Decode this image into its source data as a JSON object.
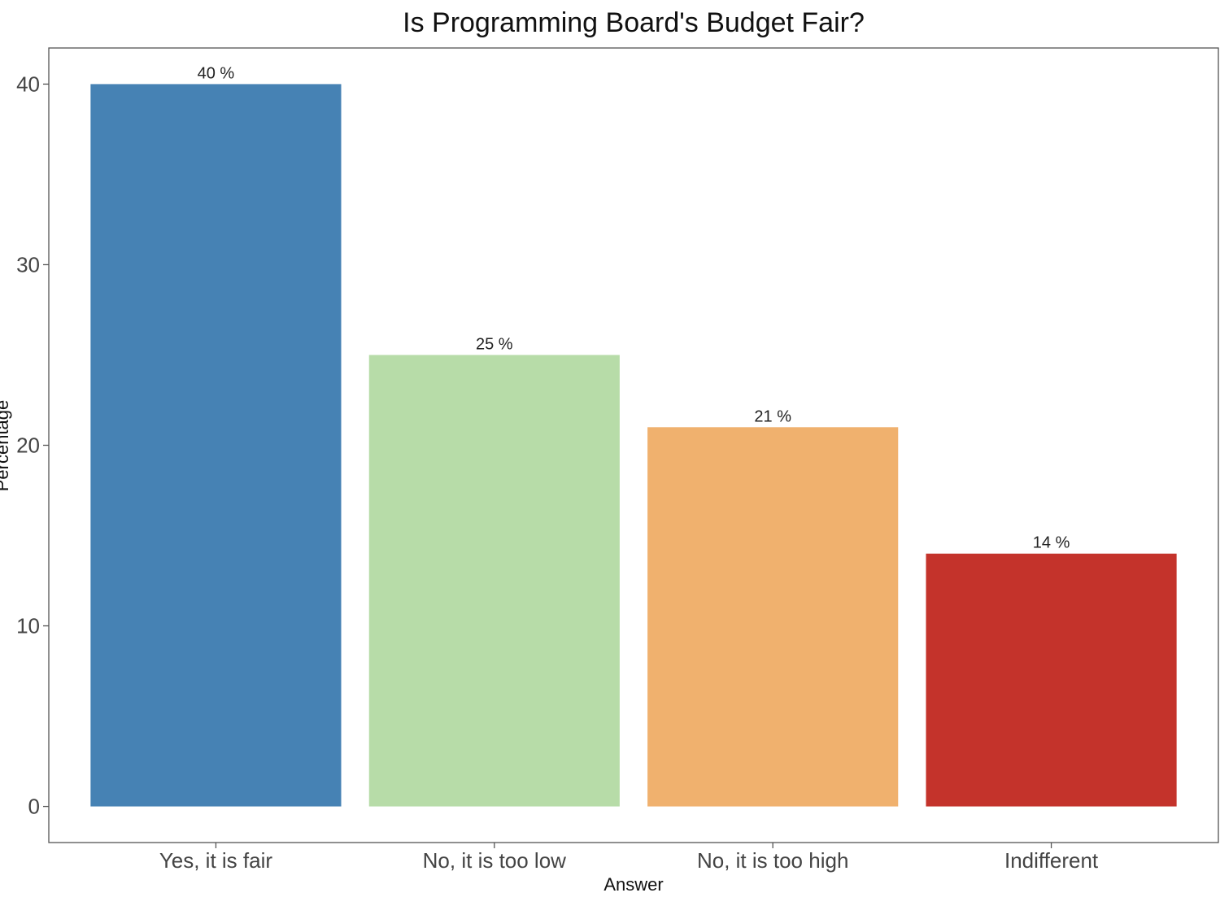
{
  "chart_data": {
    "type": "bar",
    "title": "Is Programming Board's Budget Fair?",
    "xlabel": "Answer",
    "ylabel": "Percentage",
    "categories": [
      "Yes, it is fair",
      "No, it is too low",
      "No, it is too high",
      "Indifferent"
    ],
    "values": [
      40,
      25,
      21,
      14
    ],
    "data_labels": [
      "40 %",
      "25 %",
      "21 %",
      "14 %"
    ],
    "colors": [
      "#4682b4",
      "#b7dca8",
      "#f0b16e",
      "#c4332b"
    ],
    "ylim": [
      -2,
      42
    ],
    "yticks": [
      0,
      10,
      20,
      30,
      40
    ],
    "ytick_labels": [
      "0",
      "10",
      "20",
      "30",
      "40"
    ],
    "grid": false,
    "legend": "none"
  }
}
